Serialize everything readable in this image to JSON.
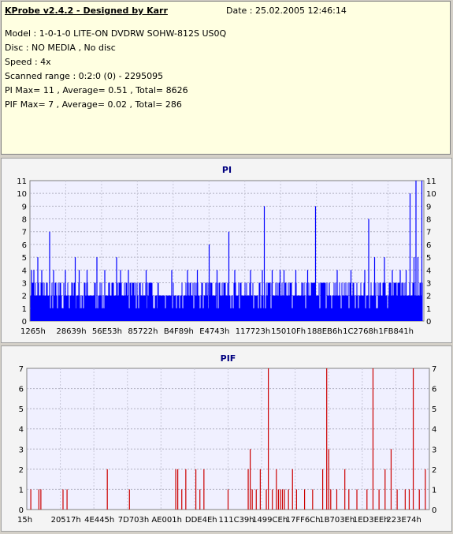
{
  "info": {
    "title": "KProbe v2.4.2 - Designed by Karr",
    "date": "Date : 25.02.2005 12:46:14",
    "lines": [
      "Model : 1-0-1-0 LITE-ON DVDRW SOHW-812S  US0Q",
      "Disc : NO MEDIA , No disc",
      "Speed : 4x",
      "Scanned range : 0:2:0 (0) - 2295095",
      "PI Max= 11 , Average= 0.51 , Total= 8626",
      "PIF Max= 7 , Average= 0.02 , Total= 286"
    ]
  },
  "chart_data": [
    {
      "type": "bar",
      "title": "PI",
      "ylim": [
        0,
        11
      ],
      "yticks": [
        0,
        1,
        2,
        3,
        4,
        5,
        6,
        7,
        8,
        9,
        10,
        11
      ],
      "xticks": [
        "1265h",
        "28639h",
        "56E53h",
        "85722h",
        "B4F89h",
        "E4743h",
        "117723h",
        "15010Fh",
        "188EB6h",
        "1C2768h",
        "1FB841h"
      ],
      "color": "#0000ff",
      "grid": true,
      "baseline_level": 2,
      "peaks": [
        {
          "pos": 0.004,
          "value": 4
        },
        {
          "pos": 0.01,
          "value": 4
        },
        {
          "pos": 0.02,
          "value": 5
        },
        {
          "pos": 0.03,
          "value": 4
        },
        {
          "pos": 0.05,
          "value": 7
        },
        {
          "pos": 0.06,
          "value": 4
        },
        {
          "pos": 0.09,
          "value": 4
        },
        {
          "pos": 0.115,
          "value": 5
        },
        {
          "pos": 0.125,
          "value": 4
        },
        {
          "pos": 0.145,
          "value": 4
        },
        {
          "pos": 0.17,
          "value": 5
        },
        {
          "pos": 0.19,
          "value": 4
        },
        {
          "pos": 0.2,
          "value": 3
        },
        {
          "pos": 0.22,
          "value": 5
        },
        {
          "pos": 0.23,
          "value": 4
        },
        {
          "pos": 0.25,
          "value": 4
        },
        {
          "pos": 0.28,
          "value": 3
        },
        {
          "pos": 0.295,
          "value": 4
        },
        {
          "pos": 0.325,
          "value": 3
        },
        {
          "pos": 0.36,
          "value": 4
        },
        {
          "pos": 0.4,
          "value": 4
        },
        {
          "pos": 0.425,
          "value": 4
        },
        {
          "pos": 0.455,
          "value": 6
        },
        {
          "pos": 0.475,
          "value": 4
        },
        {
          "pos": 0.505,
          "value": 7
        },
        {
          "pos": 0.52,
          "value": 4
        },
        {
          "pos": 0.56,
          "value": 4
        },
        {
          "pos": 0.59,
          "value": 4
        },
        {
          "pos": 0.595,
          "value": 9
        },
        {
          "pos": 0.615,
          "value": 4
        },
        {
          "pos": 0.635,
          "value": 4
        },
        {
          "pos": 0.645,
          "value": 4
        },
        {
          "pos": 0.675,
          "value": 4
        },
        {
          "pos": 0.705,
          "value": 4
        },
        {
          "pos": 0.725,
          "value": 9
        },
        {
          "pos": 0.76,
          "value": 3
        },
        {
          "pos": 0.78,
          "value": 4
        },
        {
          "pos": 0.815,
          "value": 4
        },
        {
          "pos": 0.85,
          "value": 4
        },
        {
          "pos": 0.86,
          "value": 8
        },
        {
          "pos": 0.875,
          "value": 5
        },
        {
          "pos": 0.9,
          "value": 5
        },
        {
          "pos": 0.92,
          "value": 4
        },
        {
          "pos": 0.94,
          "value": 4
        },
        {
          "pos": 0.955,
          "value": 4
        },
        {
          "pos": 0.965,
          "value": 10
        },
        {
          "pos": 0.975,
          "value": 5
        },
        {
          "pos": 0.98,
          "value": 11
        },
        {
          "pos": 0.985,
          "value": 5
        },
        {
          "pos": 0.995,
          "value": 11
        }
      ]
    },
    {
      "type": "bar",
      "title": "PIF",
      "ylim": [
        0,
        7
      ],
      "yticks": [
        0,
        1,
        2,
        3,
        4,
        5,
        6,
        7
      ],
      "xticks": [
        "15h",
        "20517h",
        "4E445h",
        "7D703h",
        "AE001h",
        "DDE4Eh",
        "111C39h",
        "1499CEh",
        "17FF6Ch",
        "1B703Eh",
        "1ED3EEh",
        "223E74h"
      ],
      "color": "#cc0000",
      "grid": true,
      "peaks": [
        {
          "pos": 0.01,
          "value": 1
        },
        {
          "pos": 0.03,
          "value": 1
        },
        {
          "pos": 0.035,
          "value": 1
        },
        {
          "pos": 0.09,
          "value": 1
        },
        {
          "pos": 0.1,
          "value": 1
        },
        {
          "pos": 0.2,
          "value": 2
        },
        {
          "pos": 0.255,
          "value": 1
        },
        {
          "pos": 0.37,
          "value": 2
        },
        {
          "pos": 0.375,
          "value": 2
        },
        {
          "pos": 0.385,
          "value": 1
        },
        {
          "pos": 0.395,
          "value": 2
        },
        {
          "pos": 0.42,
          "value": 2
        },
        {
          "pos": 0.43,
          "value": 1
        },
        {
          "pos": 0.44,
          "value": 2
        },
        {
          "pos": 0.5,
          "value": 1
        },
        {
          "pos": 0.55,
          "value": 2
        },
        {
          "pos": 0.555,
          "value": 3
        },
        {
          "pos": 0.56,
          "value": 1
        },
        {
          "pos": 0.57,
          "value": 1
        },
        {
          "pos": 0.58,
          "value": 2
        },
        {
          "pos": 0.595,
          "value": 1
        },
        {
          "pos": 0.6,
          "value": 7
        },
        {
          "pos": 0.61,
          "value": 1
        },
        {
          "pos": 0.62,
          "value": 2
        },
        {
          "pos": 0.625,
          "value": 1
        },
        {
          "pos": 0.63,
          "value": 1
        },
        {
          "pos": 0.635,
          "value": 1
        },
        {
          "pos": 0.64,
          "value": 1
        },
        {
          "pos": 0.65,
          "value": 1
        },
        {
          "pos": 0.66,
          "value": 2
        },
        {
          "pos": 0.67,
          "value": 1
        },
        {
          "pos": 0.69,
          "value": 1
        },
        {
          "pos": 0.71,
          "value": 1
        },
        {
          "pos": 0.735,
          "value": 2
        },
        {
          "pos": 0.745,
          "value": 7
        },
        {
          "pos": 0.75,
          "value": 3
        },
        {
          "pos": 0.755,
          "value": 1
        },
        {
          "pos": 0.77,
          "value": 1
        },
        {
          "pos": 0.79,
          "value": 2
        },
        {
          "pos": 0.8,
          "value": 1
        },
        {
          "pos": 0.82,
          "value": 1
        },
        {
          "pos": 0.845,
          "value": 1
        },
        {
          "pos": 0.86,
          "value": 7
        },
        {
          "pos": 0.875,
          "value": 1
        },
        {
          "pos": 0.89,
          "value": 2
        },
        {
          "pos": 0.905,
          "value": 3
        },
        {
          "pos": 0.92,
          "value": 1
        },
        {
          "pos": 0.94,
          "value": 1
        },
        {
          "pos": 0.95,
          "value": 1
        },
        {
          "pos": 0.96,
          "value": 7
        },
        {
          "pos": 0.975,
          "value": 1
        },
        {
          "pos": 0.99,
          "value": 2
        }
      ]
    }
  ]
}
